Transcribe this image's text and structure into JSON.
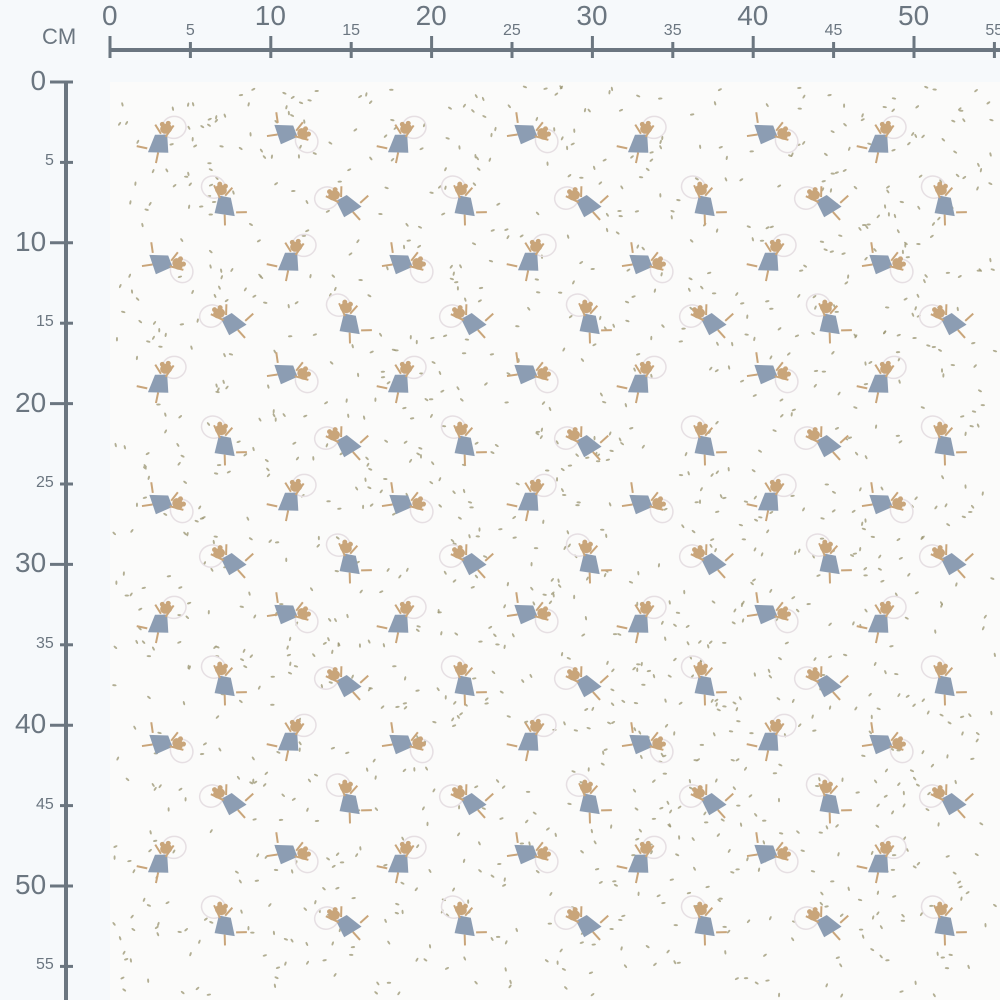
{
  "ruler": {
    "unit_label": "CM",
    "horizontal_ticks": [
      "0",
      "5",
      "10",
      "15",
      "20",
      "25",
      "30",
      "35",
      "40",
      "45",
      "50",
      "55"
    ],
    "vertical_ticks": [
      "0",
      "5",
      "10",
      "15",
      "20",
      "25",
      "30",
      "35",
      "40",
      "45",
      "50",
      "55"
    ],
    "color": "#6b7680"
  },
  "fabric": {
    "motif": "dancing mouse with ribbon hoop on white with scattered leaf dots",
    "background_color": "#fbfbfa",
    "dress_color": "#8c9db3",
    "mouse_color": "#c9a57a",
    "dot_color": "#9a9470"
  }
}
